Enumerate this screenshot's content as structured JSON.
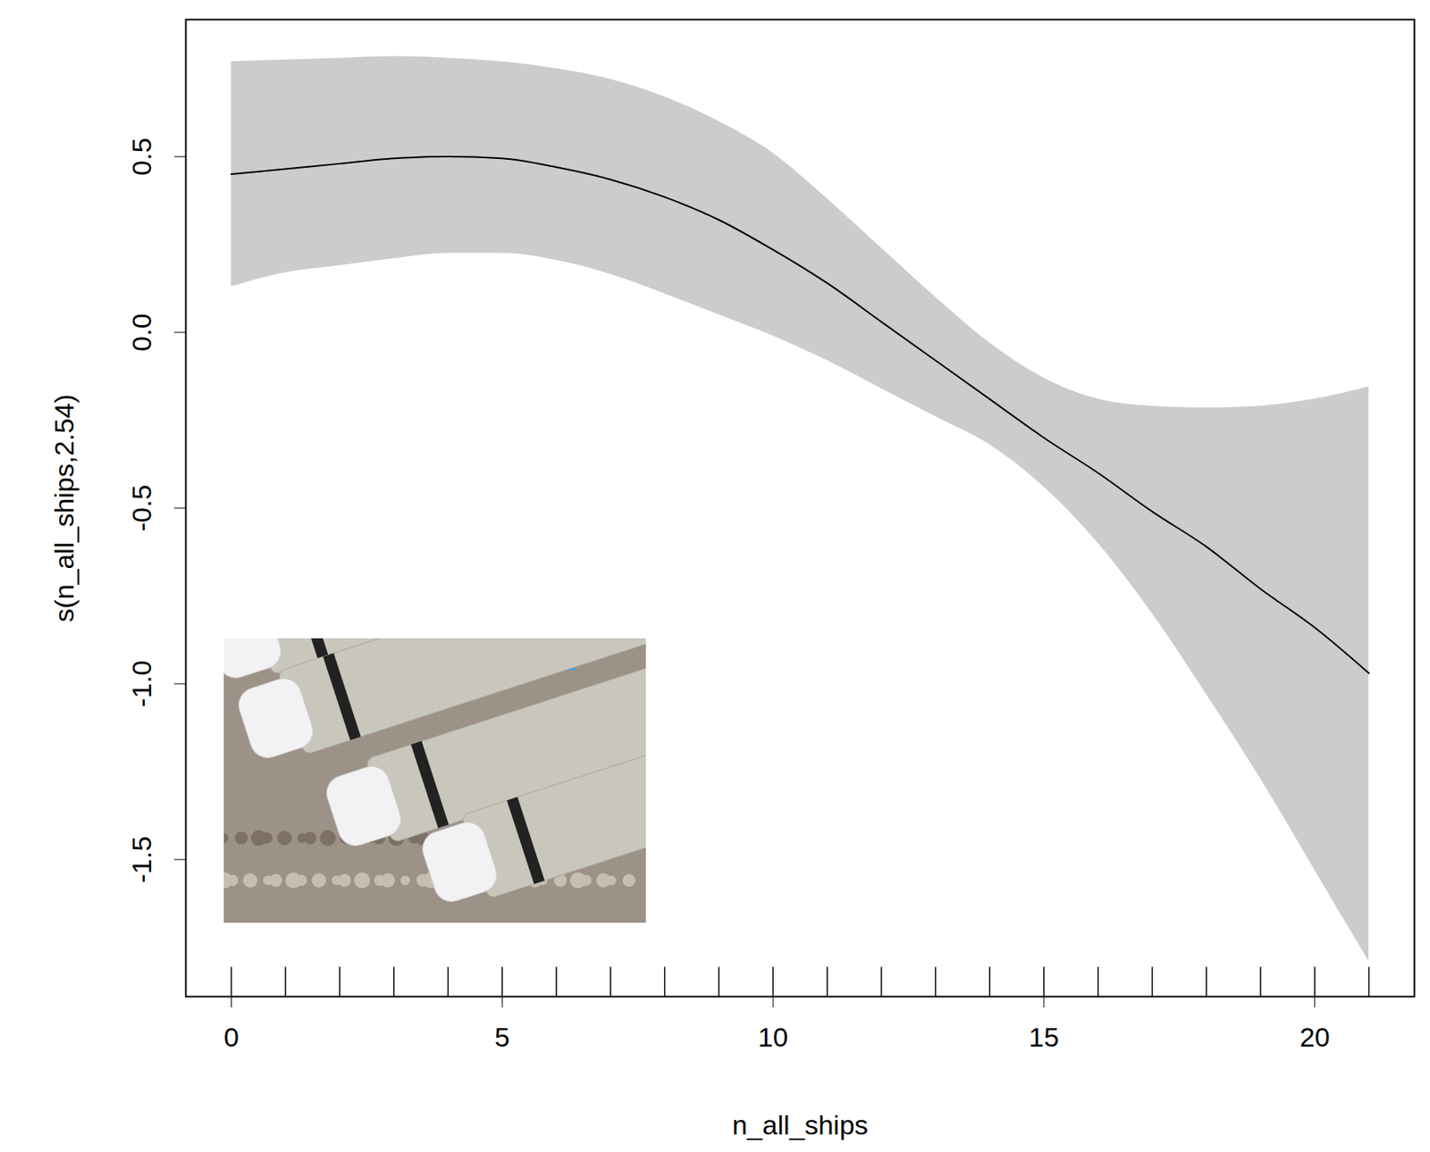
{
  "chart_data": {
    "type": "line",
    "xlabel": "n_all_ships",
    "ylabel": "s(n_all_ships,2.54)",
    "x": [
      0,
      1,
      2,
      3,
      4,
      5,
      6,
      7,
      8,
      9,
      10,
      11,
      12,
      13,
      14,
      15,
      16,
      17,
      18,
      19,
      20,
      21
    ],
    "values": [
      0.45,
      0.465,
      0.48,
      0.495,
      0.5,
      0.495,
      0.47,
      0.435,
      0.385,
      0.32,
      0.235,
      0.14,
      0.03,
      -0.08,
      -0.19,
      -0.3,
      -0.4,
      -0.51,
      -0.61,
      -0.73,
      -0.84,
      -0.97
    ],
    "lower": [
      0.13,
      0.17,
      0.19,
      0.21,
      0.225,
      0.225,
      0.205,
      0.165,
      0.11,
      0.05,
      -0.01,
      -0.08,
      -0.16,
      -0.24,
      -0.32,
      -0.44,
      -0.6,
      -0.8,
      -1.03,
      -1.27,
      -1.53,
      -1.79
    ],
    "upper": [
      0.77,
      0.775,
      0.78,
      0.785,
      0.78,
      0.77,
      0.75,
      0.72,
      0.67,
      0.6,
      0.51,
      0.38,
      0.24,
      0.1,
      -0.03,
      -0.13,
      -0.19,
      -0.21,
      -0.215,
      -0.21,
      -0.19,
      -0.155
    ],
    "rug": [
      0,
      1,
      2,
      3,
      4,
      5,
      6,
      7,
      8,
      9,
      10,
      11,
      12,
      13,
      14,
      15,
      16,
      17,
      18,
      19,
      20,
      21
    ],
    "color": "#000000",
    "xlim": [
      -0.84,
      21.84
    ],
    "ylim": [
      -1.89,
      0.89
    ],
    "xticks": [
      0,
      5,
      10,
      15,
      20
    ],
    "yticks": [
      -1.5,
      {
        "value": -1,
        "label": "-1.0"
      },
      -0.5,
      {
        "value": 0,
        "label": "0.0"
      },
      0.5
    ],
    "grid": false
  }
}
